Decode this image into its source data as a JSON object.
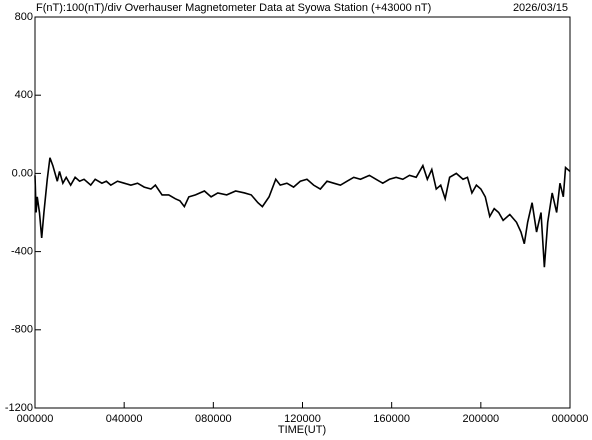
{
  "chart_data": {
    "type": "line",
    "title": "F(nT):100(nT)/div  Overhauser Magnetometer Data at Syowa Station (+43000 nT)",
    "date": "2026/03/15",
    "x_label": "TIME(UT)",
    "color": "#000000",
    "x": [
      0,
      0.05,
      0.1,
      0.2,
      0.3,
      0.4,
      0.55,
      0.67,
      0.8,
      1.0,
      1.1,
      1.25,
      1.4,
      1.6,
      1.8,
      2.0,
      2.2,
      2.5,
      2.7,
      3.0,
      3.2,
      3.4,
      3.7,
      4.0,
      4.3,
      4.6,
      4.9,
      5.2,
      5.4,
      5.7,
      6.0,
      6.3,
      6.5,
      6.7,
      6.9,
      7.2,
      7.6,
      7.9,
      8.2,
      8.6,
      9.0,
      9.4,
      9.7,
      10.0,
      10.2,
      10.5,
      10.8,
      11.0,
      11.3,
      11.6,
      11.9,
      12.2,
      12.5,
      12.8,
      13.1,
      13.4,
      13.7,
      14.0,
      14.3,
      14.6,
      15.0,
      15.3,
      15.6,
      15.9,
      16.2,
      16.5,
      16.8,
      17.1,
      17.4,
      17.6,
      17.8,
      18.0,
      18.2,
      18.4,
      18.6,
      18.9,
      19.2,
      19.4,
      19.6,
      19.8,
      20.0,
      20.2,
      20.4,
      20.6,
      20.8,
      21.0,
      21.3,
      21.6,
      21.8,
      21.95,
      22.1,
      22.3,
      22.5,
      22.7,
      22.85,
      23.0,
      23.2,
      23.4,
      23.55,
      23.7,
      23.8,
      24.0
    ],
    "values": [
      -10,
      -200,
      -120,
      -200,
      -330,
      -200,
      -30,
      80,
      40,
      -40,
      10,
      -50,
      -20,
      -60,
      -20,
      -40,
      -30,
      -60,
      -30,
      -50,
      -40,
      -60,
      -40,
      -50,
      -60,
      -50,
      -70,
      -80,
      -60,
      -110,
      -110,
      -130,
      -140,
      -170,
      -120,
      -110,
      -90,
      -120,
      -100,
      -110,
      -90,
      -100,
      -110,
      -150,
      -170,
      -120,
      -30,
      -60,
      -50,
      -70,
      -40,
      -30,
      -60,
      -80,
      -40,
      -50,
      -60,
      -40,
      -20,
      -30,
      -10,
      -30,
      -50,
      -30,
      -20,
      -30,
      -10,
      -20,
      40,
      -30,
      20,
      -80,
      -60,
      -130,
      -20,
      0,
      -30,
      -20,
      -100,
      -60,
      -80,
      -120,
      -220,
      -180,
      -200,
      -240,
      -210,
      -250,
      -300,
      -360,
      -250,
      -150,
      -300,
      -200,
      -480,
      -250,
      -100,
      -200,
      -50,
      -120,
      30,
      10
    ],
    "xlim": [
      0,
      24
    ],
    "xticks": [
      {
        "value": 0,
        "label": "000000"
      },
      {
        "value": 4,
        "label": "040000"
      },
      {
        "value": 8,
        "label": "080000"
      },
      {
        "value": 12,
        "label": "120000"
      },
      {
        "value": 16,
        "label": "160000"
      },
      {
        "value": 20,
        "label": "200000"
      },
      {
        "value": 24,
        "label": "000000"
      }
    ],
    "ylim": [
      -1200,
      800
    ],
    "yticks": [
      800,
      400,
      {
        "value": 0,
        "label": "0.00"
      },
      -400,
      -800,
      -1200
    ]
  }
}
